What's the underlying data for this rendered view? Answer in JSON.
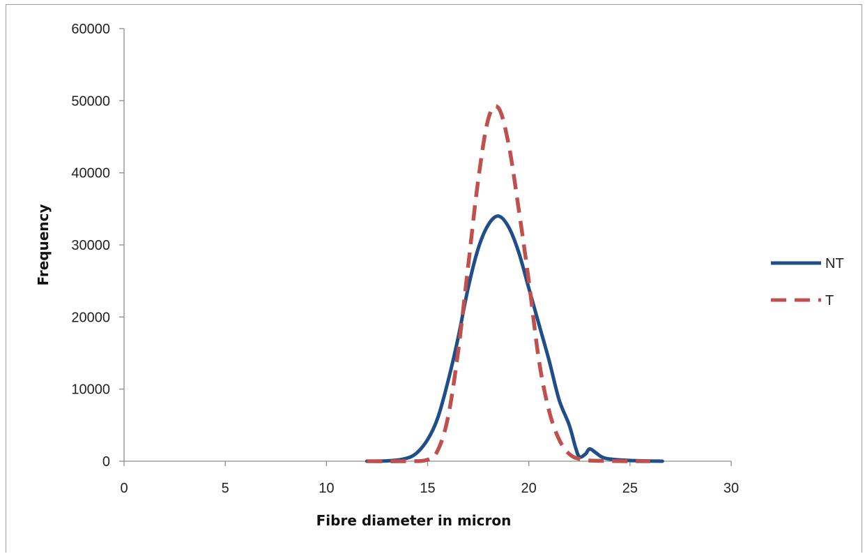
{
  "chart_data": {
    "type": "line",
    "title": "",
    "xlabel": "Fibre diameter in micron",
    "ylabel": "Frequency",
    "xlim": [
      0,
      30
    ],
    "ylim": [
      0,
      60000
    ],
    "x_ticks": [
      0,
      5,
      10,
      15,
      20,
      25,
      30
    ],
    "y_ticks": [
      0,
      10000,
      20000,
      30000,
      40000,
      50000,
      60000
    ],
    "grid": false,
    "legend_position": "right",
    "series": [
      {
        "name": "NT",
        "color": "#1f4e89",
        "style": "solid",
        "x": [
          12.0,
          13.0,
          13.8,
          14.4,
          15.0,
          15.5,
          16.0,
          16.5,
          17.0,
          17.5,
          18.0,
          18.5,
          19.0,
          19.5,
          20.0,
          20.5,
          21.0,
          21.5,
          22.0,
          22.3,
          22.5,
          22.8,
          23.0,
          23.3,
          23.6,
          24.0,
          25.0,
          26.0,
          26.6
        ],
        "y": [
          0,
          50,
          300,
          1000,
          3000,
          6000,
          11000,
          17000,
          24000,
          29500,
          32800,
          34000,
          32500,
          29000,
          24000,
          19000,
          14000,
          8500,
          5000,
          2000,
          600,
          1000,
          1700,
          1200,
          600,
          300,
          100,
          30,
          0
        ]
      },
      {
        "name": "T",
        "color": "#c0504d",
        "style": "dashed",
        "x": [
          12.0,
          14.0,
          15.0,
          15.5,
          16.0,
          16.5,
          17.0,
          17.5,
          18.0,
          18.5,
          19.0,
          19.5,
          20.0,
          20.5,
          21.0,
          21.5,
          22.0,
          22.5,
          23.0,
          24.0,
          25.0,
          26.0
        ],
        "y": [
          0,
          0,
          200,
          1500,
          6000,
          15000,
          27000,
          39000,
          47500,
          49000,
          44000,
          35000,
          25000,
          14000,
          7000,
          3000,
          1000,
          300,
          100,
          30,
          0,
          0
        ]
      }
    ]
  }
}
